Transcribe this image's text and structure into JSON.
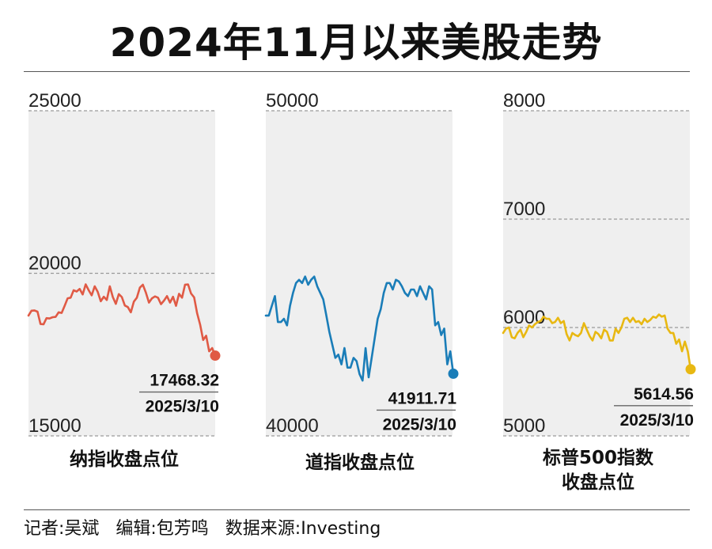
{
  "title": "2024年11月以来美股走势",
  "footer": "记者:吴斌   编辑:包芳鸣   数据来源:Investing",
  "chart_data": [
    {
      "type": "line",
      "series": [
        {
          "name": "纳指收盘点位",
          "color": "#e05a45",
          "values": [
            18700,
            18850,
            18860,
            18820,
            18440,
            18430,
            18620,
            18610,
            18650,
            18660,
            18800,
            18780,
            19000,
            19230,
            19250,
            19480,
            19440,
            19520,
            19350,
            19660,
            19480,
            19320,
            19600,
            19430,
            19140,
            19280,
            19180,
            19600,
            19270,
            19060,
            19360,
            19270,
            19010,
            18960,
            18800,
            19130,
            19250,
            19560,
            19650,
            19400,
            19100,
            19230,
            19290,
            19250,
            19050,
            19160,
            19300,
            19100,
            19280,
            19000,
            19370,
            19250,
            19650,
            19660,
            19380,
            19260,
            18770,
            18420,
            17950,
            18080,
            17600,
            17700,
            17468.32
          ]
        }
      ],
      "ylim": [
        15000,
        25000
      ],
      "yticks": [
        "25000",
        "20000",
        "15000"
      ],
      "ytick_values": [
        25000,
        20000,
        15000
      ],
      "last_value": "17468.32",
      "last_date": "2025/3/10",
      "caption": [
        "纳指收盘点位"
      ],
      "grid": true
    },
    {
      "type": "line",
      "series": [
        {
          "name": "道指收盘点位",
          "color": "#1a7db8",
          "values": [
            43700,
            43700,
            44000,
            44300,
            43500,
            43500,
            43600,
            43400,
            44000,
            44400,
            44700,
            44800,
            44700,
            44900,
            44650,
            44800,
            44900,
            44600,
            44400,
            44200,
            43700,
            43200,
            42800,
            42400,
            42500,
            42200,
            42700,
            42100,
            42100,
            42400,
            42300,
            41900,
            41700,
            42700,
            41800,
            42400,
            43000,
            43600,
            43900,
            44400,
            44700,
            44700,
            44500,
            44800,
            44750,
            44600,
            44400,
            44300,
            44500,
            44500,
            44300,
            44600,
            44400,
            44200,
            44600,
            44500,
            43400,
            43500,
            43100,
            43300,
            42200,
            42600,
            41911.71
          ]
        }
      ],
      "ylim": [
        40000,
        50000
      ],
      "yticks": [
        "50000",
        "40000"
      ],
      "ytick_values": [
        50000,
        40000
      ],
      "last_value": "41911.71",
      "last_date": "2025/3/10",
      "caption": [
        "道指收盘点位"
      ],
      "grid": true
    },
    {
      "type": "line",
      "series": [
        {
          "name": "标普500指数收盘点位",
          "color": "#e8b812",
          "values": [
            5950,
            5990,
            6000,
            5910,
            5900,
            5950,
            5980,
            5910,
            5960,
            6020,
            6000,
            6030,
            6050,
            6060,
            6100,
            6080,
            6080,
            6040,
            6050,
            6090,
            6040,
            6060,
            5940,
            5880,
            5950,
            5930,
            5920,
            5950,
            6040,
            5980,
            5920,
            5880,
            5960,
            5940,
            5900,
            5980,
            5960,
            5880,
            5880,
            5990,
            5950,
            6000,
            6080,
            6090,
            6050,
            6090,
            6050,
            6060,
            6030,
            6080,
            6050,
            6070,
            6100,
            6090,
            6120,
            6100,
            6110,
            5990,
            5950,
            5950,
            5850,
            5890,
            5780,
            5870,
            5780,
            5614.56
          ]
        }
      ],
      "ylim": [
        5000,
        8000
      ],
      "yticks": [
        "8000",
        "7000",
        "6000",
        "5000"
      ],
      "ytick_values": [
        8000,
        7000,
        6000,
        5000
      ],
      "last_value": "5614.56",
      "last_date": "2025/3/10",
      "caption": [
        "标普500指数",
        "收盘点位"
      ],
      "grid": true
    }
  ]
}
